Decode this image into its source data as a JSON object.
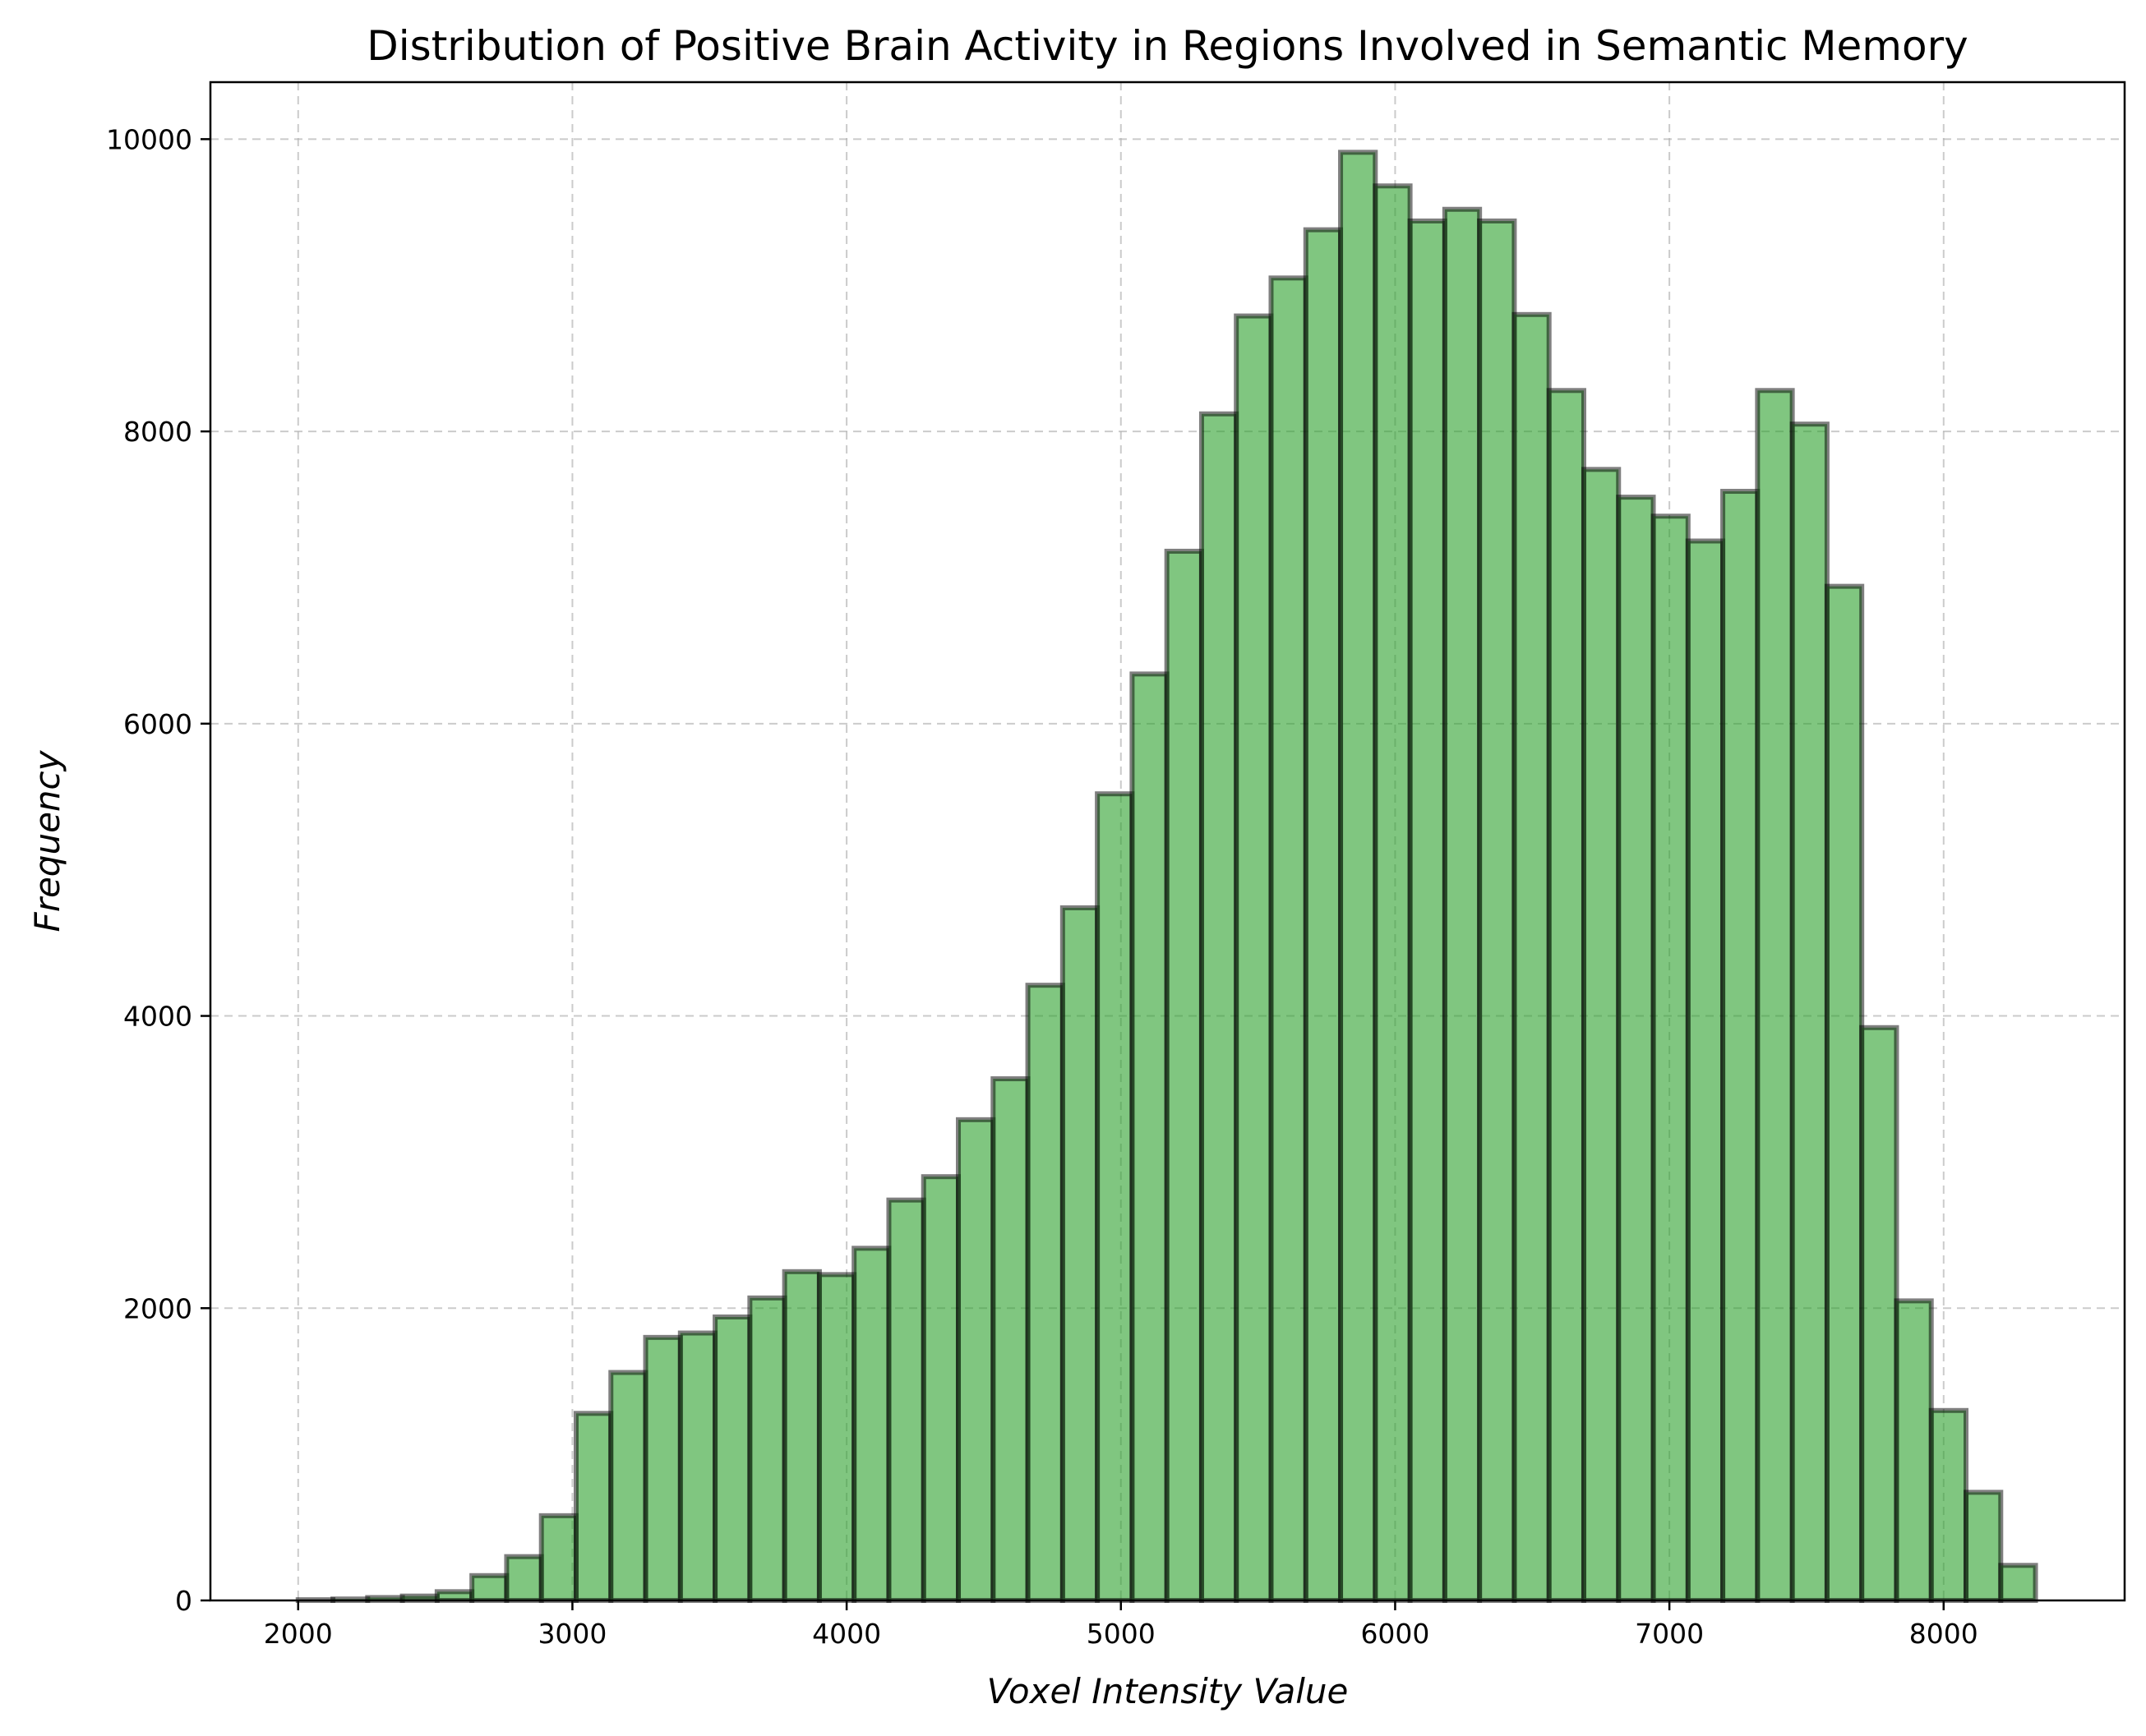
{
  "chart_data": {
    "type": "bar",
    "title": "Distribution of Positive Brain Activity in Regions Involved in Semantic Memory",
    "xlabel": "Voxel Intensity Value",
    "ylabel": "Frequency",
    "xlim": [
      1680,
      8660
    ],
    "ylim": [
      0,
      10390
    ],
    "xticks": [
      "2000",
      "3000",
      "4000",
      "5000",
      "6000",
      "7000",
      "8000"
    ],
    "yticks": [
      "0",
      "2000",
      "4000",
      "6000",
      "8000",
      "10000"
    ],
    "grid": true,
    "bar_color": "#2ca02c",
    "edge_color": "#000000",
    "bin_start": 2000,
    "bin_width": 126.7,
    "values": [
      5,
      10,
      20,
      30,
      60,
      170,
      300,
      580,
      1280,
      1560,
      1800,
      1830,
      1940,
      2070,
      2250,
      2230,
      2410,
      2740,
      2900,
      3290,
      3570,
      4210,
      4740,
      5520,
      6340,
      7180,
      8120,
      8790,
      9050,
      9380,
      9910,
      9680,
      9440,
      9520,
      9440,
      8800,
      8280,
      7740,
      7550,
      7420,
      7250,
      7590,
      8280,
      8050,
      6940,
      3920,
      2050,
      1300,
      740,
      240
    ]
  }
}
